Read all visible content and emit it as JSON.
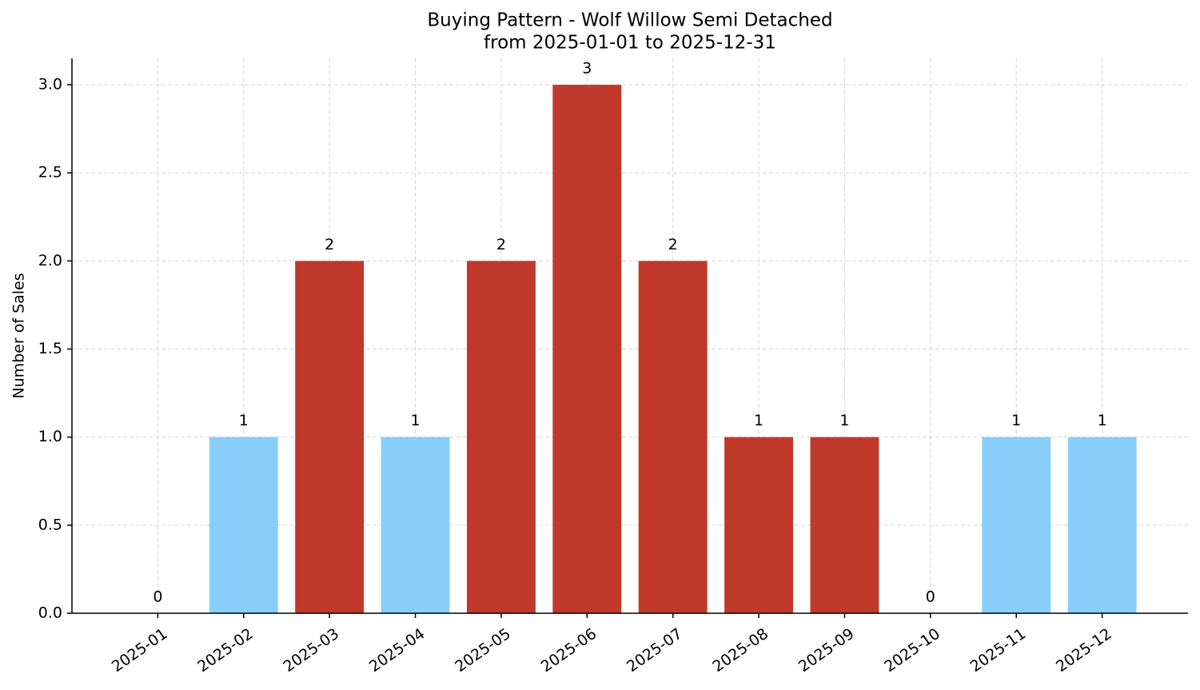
{
  "chart_data": {
    "type": "bar",
    "title": "Buying Pattern - Wolf Willow Semi Detached",
    "subtitle": "from 2025-01-01 to 2025-12-31",
    "y_label": "Number of Sales",
    "categories": [
      "2025-01",
      "2025-02",
      "2025-03",
      "2025-04",
      "2025-05",
      "2025-06",
      "2025-07",
      "2025-08",
      "2025-09",
      "2025-10",
      "2025-11",
      "2025-12"
    ],
    "values": [
      0,
      1,
      2,
      1,
      2,
      3,
      2,
      1,
      1,
      0,
      1,
      1
    ],
    "colors": [
      "#87cefa",
      "#87cefa",
      "#c0392b",
      "#87cefa",
      "#c0392b",
      "#c0392b",
      "#c0392b",
      "#c0392b",
      "#c0392b",
      "#87cefa",
      "#87cefa",
      "#87cefa"
    ],
    "ylim": [
      0,
      3.15
    ],
    "yticks": [
      {
        "value": 0,
        "label": "0.0"
      },
      0.5,
      {
        "value": 1,
        "label": "1.0"
      },
      1.5,
      {
        "value": 2,
        "label": "2.0"
      },
      2.5,
      {
        "value": 3,
        "label": "3.0"
      }
    ],
    "grid": true
  }
}
